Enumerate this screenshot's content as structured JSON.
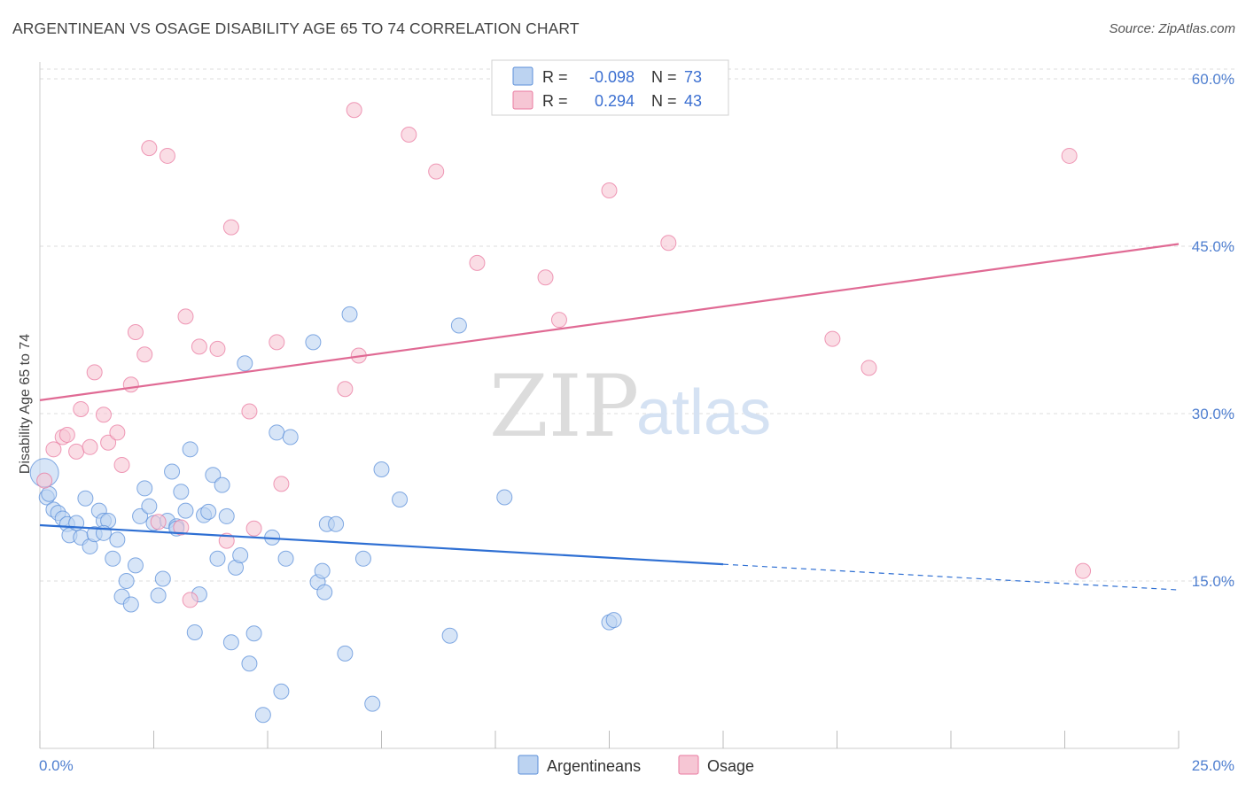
{
  "title": "ARGENTINEAN VS OSAGE DISABILITY AGE 65 TO 74 CORRELATION CHART",
  "source": "Source: ZipAtlas.com",
  "watermark": {
    "zip": "ZIP",
    "atlas": "atlas"
  },
  "colors": {
    "blue": "#5b8fd9",
    "blue_fill": "#bcd3f1",
    "blue_line": "#2e6fd3",
    "pink": "#e97aa0",
    "pink_fill": "#f6c6d4",
    "pink_line": "#e06a94",
    "tick": "#4f7fd0",
    "grid": "#dddddd"
  },
  "legend": {
    "rows": [
      {
        "r_label": "R =",
        "r_value": "-0.098",
        "n_label": "N =",
        "n_value": "73"
      },
      {
        "r_label": "R =",
        "r_value": "0.294",
        "n_label": "N =",
        "n_value": "43"
      }
    ]
  },
  "chart_data": {
    "type": "scatter",
    "title": "ARGENTINEAN VS OSAGE DISABILITY AGE 65 TO 74 CORRELATION CHART",
    "xlabel": "",
    "ylabel": "Disability Age 65 to 74",
    "xlim": [
      0,
      25
    ],
    "ylim": [
      0,
      62
    ],
    "x_tick_labels": [
      "0.0%",
      "25.0%"
    ],
    "y_ticks": [
      15,
      30,
      45,
      60
    ],
    "y_tick_labels": [
      "15.0%",
      "30.0%",
      "45.0%",
      "60.0%"
    ],
    "grid": true,
    "legend_position": "top-center",
    "series": [
      {
        "name": "Argentineans",
        "r": -0.098,
        "n": 73,
        "trend": {
          "x0": 0,
          "y0": 20.0,
          "x1": 15,
          "y1": 16.5,
          "dash_to_x": 25,
          "dash_to_y": 14.2
        },
        "points": [
          [
            0.1,
            24.7
          ],
          [
            0.15,
            22.5
          ],
          [
            0.3,
            21.4
          ],
          [
            0.4,
            21.1
          ],
          [
            0.5,
            20.6
          ],
          [
            0.6,
            20.1
          ],
          [
            0.65,
            19.1
          ],
          [
            0.8,
            20.2
          ],
          [
            0.9,
            18.9
          ],
          [
            1.0,
            22.4
          ],
          [
            1.1,
            18.1
          ],
          [
            1.2,
            19.2
          ],
          [
            1.3,
            21.3
          ],
          [
            1.4,
            20.4
          ],
          [
            1.5,
            20.4
          ],
          [
            1.6,
            17.0
          ],
          [
            1.7,
            18.7
          ],
          [
            1.8,
            13.6
          ],
          [
            1.9,
            15.0
          ],
          [
            2.0,
            12.9
          ],
          [
            2.1,
            16.4
          ],
          [
            2.2,
            20.8
          ],
          [
            2.3,
            23.3
          ],
          [
            2.4,
            21.7
          ],
          [
            2.5,
            20.2
          ],
          [
            2.6,
            13.7
          ],
          [
            2.7,
            15.2
          ],
          [
            2.8,
            20.4
          ],
          [
            2.9,
            24.8
          ],
          [
            3.0,
            19.9
          ],
          [
            3.1,
            23.0
          ],
          [
            3.2,
            21.3
          ],
          [
            3.3,
            26.8
          ],
          [
            3.4,
            10.4
          ],
          [
            3.5,
            13.8
          ],
          [
            3.6,
            20.9
          ],
          [
            3.7,
            21.2
          ],
          [
            3.8,
            24.5
          ],
          [
            3.9,
            17.0
          ],
          [
            4.0,
            23.6
          ],
          [
            4.1,
            20.8
          ],
          [
            4.2,
            9.5
          ],
          [
            4.3,
            16.2
          ],
          [
            4.4,
            17.3
          ],
          [
            4.5,
            34.5
          ],
          [
            4.6,
            7.6
          ],
          [
            4.7,
            10.3
          ],
          [
            4.9,
            3.0
          ],
          [
            5.1,
            18.9
          ],
          [
            5.2,
            28.3
          ],
          [
            5.3,
            5.1
          ],
          [
            5.4,
            17.0
          ],
          [
            5.5,
            27.9
          ],
          [
            6.0,
            36.4
          ],
          [
            6.1,
            14.9
          ],
          [
            6.2,
            15.9
          ],
          [
            6.25,
            14.0
          ],
          [
            6.3,
            20.1
          ],
          [
            6.5,
            20.1
          ],
          [
            6.7,
            8.5
          ],
          [
            6.8,
            38.9
          ],
          [
            7.1,
            17.0
          ],
          [
            7.3,
            4.0
          ],
          [
            7.5,
            25.0
          ],
          [
            7.9,
            22.3
          ],
          [
            9.0,
            10.1
          ],
          [
            9.2,
            37.9
          ],
          [
            10.2,
            22.5
          ],
          [
            12.5,
            11.3
          ],
          [
            12.6,
            11.5
          ],
          [
            0.2,
            22.8
          ],
          [
            1.4,
            19.3
          ],
          [
            3.0,
            19.7
          ]
        ]
      },
      {
        "name": "Osage",
        "r": 0.294,
        "n": 43,
        "trend": {
          "x0": 0,
          "y0": 31.2,
          "x1": 25,
          "y1": 45.2
        },
        "points": [
          [
            0.1,
            24.0
          ],
          [
            0.3,
            26.8
          ],
          [
            0.5,
            27.9
          ],
          [
            0.6,
            28.1
          ],
          [
            0.8,
            26.6
          ],
          [
            0.9,
            30.4
          ],
          [
            1.1,
            27.0
          ],
          [
            1.2,
            33.7
          ],
          [
            1.4,
            29.9
          ],
          [
            1.5,
            27.4
          ],
          [
            1.7,
            28.3
          ],
          [
            1.8,
            25.4
          ],
          [
            2.0,
            32.6
          ],
          [
            2.1,
            37.3
          ],
          [
            2.3,
            35.3
          ],
          [
            2.4,
            53.8
          ],
          [
            2.6,
            20.3
          ],
          [
            2.8,
            53.1
          ],
          [
            3.1,
            19.8
          ],
          [
            3.2,
            38.7
          ],
          [
            3.3,
            13.3
          ],
          [
            3.5,
            36.0
          ],
          [
            3.9,
            35.8
          ],
          [
            4.1,
            18.6
          ],
          [
            4.2,
            46.7
          ],
          [
            4.6,
            30.2
          ],
          [
            4.7,
            19.7
          ],
          [
            5.2,
            36.4
          ],
          [
            5.3,
            23.7
          ],
          [
            6.7,
            32.2
          ],
          [
            6.9,
            57.2
          ],
          [
            7.0,
            35.2
          ],
          [
            8.1,
            55.0
          ],
          [
            8.7,
            51.7
          ],
          [
            9.6,
            43.5
          ],
          [
            11.1,
            42.2
          ],
          [
            11.4,
            38.4
          ],
          [
            12.5,
            50.0
          ],
          [
            13.8,
            45.3
          ],
          [
            17.4,
            36.7
          ],
          [
            18.2,
            34.1
          ],
          [
            22.6,
            53.1
          ],
          [
            22.9,
            15.9
          ]
        ]
      }
    ]
  }
}
